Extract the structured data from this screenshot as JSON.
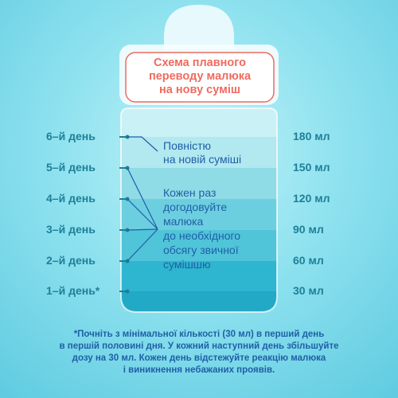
{
  "title": {
    "lines": [
      "Схема плавного",
      "переводу малюка",
      "на нову суміш"
    ]
  },
  "days": [
    {
      "day": "6–й день",
      "volume": "180 мл"
    },
    {
      "day": "5–й день",
      "volume": "150 мл"
    },
    {
      "day": "4–й день",
      "volume": "120 мл"
    },
    {
      "day": "3–й день",
      "volume": "90 мл"
    },
    {
      "day": "2–й день",
      "volume": "60 мл"
    },
    {
      "day": "1–й день*",
      "volume": "30 мл"
    }
  ],
  "notes": {
    "full_new": [
      "Повністю",
      "на новій суміші"
    ],
    "mixing": [
      "Кожен раз",
      "догодовуйте",
      "малюка",
      "до необхідного",
      "обсягу звичної",
      "сумішшю"
    ]
  },
  "footnote": {
    "lines": [
      "*Почніть з мінімальної кількості (30 мл) в перший день",
      "в першій половині дня. У кожний наступний день збільшуйте",
      "дозу на 30 мл. Кожен день відстежуйте реакцію малюка",
      "і виникнення небажаних проявів."
    ]
  },
  "colors": {
    "accent": "#ef6b5f",
    "text_blue": "#1f5fa6",
    "label_teal": "#1e7f98",
    "liquid_dark": "#28b3cc",
    "liquid_light": "#a9e6ee",
    "bottle_glass": "#bfeff5"
  }
}
